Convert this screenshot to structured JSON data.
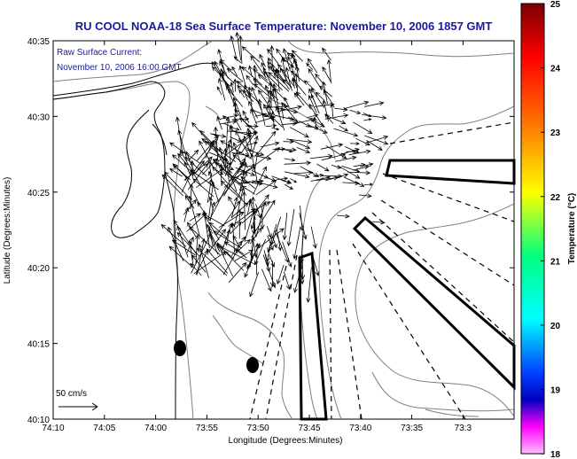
{
  "title": "RU COOL  NOAA-18  Sea Surface Temperature:  November 10, 2006 1857 GMT",
  "annotation": {
    "line1": "Raw Surface Current:",
    "line2": "November 10, 2006 16:00 GMT"
  },
  "x_axis": {
    "label": "Longitude (Degrees:Minutes)",
    "ticks": [
      "74:10",
      "74:05",
      "74:00",
      "73:55",
      "73:50",
      "73:45",
      "73:40",
      "73:35",
      "73:3"
    ]
  },
  "y_axis": {
    "label": "Latitude (Degrees:Minutes)",
    "ticks": [
      "40:35",
      "40:30",
      "40:25",
      "40:20",
      "40:15",
      "40:10"
    ]
  },
  "scale_vector": {
    "label": "50 cm/s"
  },
  "colorbar": {
    "label": "Temperature (°C)",
    "ticks": [
      "25",
      "24",
      "23",
      "22",
      "21",
      "20",
      "19",
      "18"
    ],
    "colors": [
      "#7a0000",
      "#ff0000",
      "#ff8000",
      "#ffff00",
      "#00ff80",
      "#00ffff",
      "#0040ff",
      "#0000c0",
      "#ff00ff",
      "#ff80ff"
    ]
  },
  "map_colors": {
    "contour": "#7f7f7f",
    "coast": "#000000",
    "vector": "#000000"
  }
}
